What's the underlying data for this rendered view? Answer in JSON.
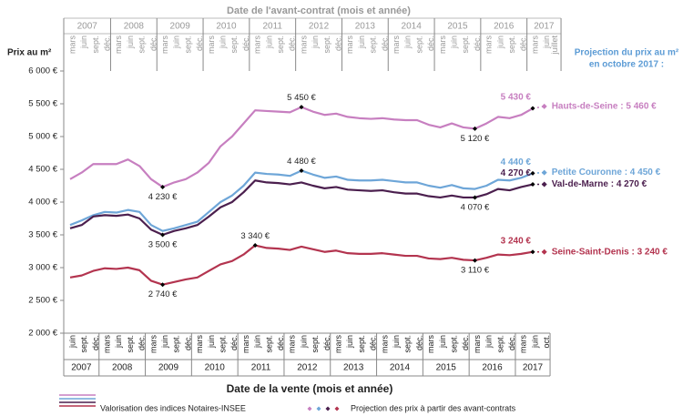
{
  "chart_data": {
    "type": "line",
    "top_axis_title": "Date de l'avant-contrat (mois et année)",
    "x_axis_title": "Date de la vente (mois et année)",
    "y_axis_label": "Prix au m²",
    "right_title": [
      "Projection du prix au m²",
      "en octobre 2017 :"
    ],
    "legend": [
      "Valorisation des indices Notaires-INSEE",
      "Projection des prix à partir des avant-contrats"
    ],
    "years": [
      "2007",
      "2008",
      "2009",
      "2010",
      "2011",
      "2012",
      "2013",
      "2014",
      "2015",
      "2016",
      "2017"
    ],
    "top_months": [
      "mars",
      "juin",
      "sept.",
      "déc.",
      "mars",
      "juin",
      "sept.",
      "déc.",
      "mars",
      "juin",
      "sept.",
      "déc.",
      "mars",
      "juin",
      "sept.",
      "déc.",
      "mars",
      "juin",
      "sept.",
      "déc.",
      "mars",
      "juin",
      "sept.",
      "déc.",
      "mars",
      "juin",
      "sept.",
      "déc.",
      "mars",
      "juin",
      "sept.",
      "déc.",
      "mars",
      "juin",
      "sept.",
      "déc.",
      "mars",
      "juin",
      "sept.",
      "déc.",
      "mars",
      "juin",
      "juillet"
    ],
    "categories": [
      "juin",
      "sept.",
      "déc.",
      "mars",
      "juin",
      "sept.",
      "déc.",
      "mars",
      "juin",
      "sept.",
      "déc.",
      "mars",
      "juin",
      "sept.",
      "déc.",
      "mars",
      "juin",
      "sept.",
      "déc.",
      "mars",
      "juin",
      "sept.",
      "déc.",
      "mars",
      "juin",
      "sept.",
      "déc.",
      "mars",
      "juin",
      "sept.",
      "déc.",
      "mars",
      "juin",
      "sept.",
      "déc.",
      "mars",
      "juin",
      "sept.",
      "déc.",
      "mars",
      "juin"
    ],
    "projection_category": "oct.",
    "ylim": [
      2000,
      6000
    ],
    "yticks": [
      {
        "value": 2000,
        "label": "2 000 €"
      },
      {
        "value": 2500,
        "label": "2 500 €"
      },
      {
        "value": 3000,
        "label": "3 000 €"
      },
      {
        "value": 3500,
        "label": "3 500 €"
      },
      {
        "value": 4000,
        "label": "4 000 €"
      },
      {
        "value": 4500,
        "label": "4 500 €"
      },
      {
        "value": 5000,
        "label": "5 000 €"
      },
      {
        "value": 5500,
        "label": "5 500 €"
      },
      {
        "value": 6000,
        "label": "6 000 €"
      }
    ],
    "series": [
      {
        "name": "Hauts-de-Seine",
        "color": "#c77fc0",
        "values": [
          4350,
          4450,
          4580,
          4580,
          4580,
          4650,
          4550,
          4350,
          4230,
          4300,
          4350,
          4450,
          4600,
          4850,
          5000,
          5200,
          5400,
          5390,
          5380,
          5370,
          5450,
          5380,
          5330,
          5350,
          5300,
          5280,
          5270,
          5280,
          5260,
          5250,
          5250,
          5180,
          5140,
          5200,
          5140,
          5120,
          5200,
          5300,
          5280,
          5330,
          5430
        ],
        "value_labels": [
          null,
          null,
          null,
          null,
          null,
          null,
          null,
          null,
          "4 230 €",
          null,
          null,
          null,
          null,
          null,
          null,
          null,
          null,
          null,
          null,
          null,
          "5 450 €",
          null,
          null,
          null,
          null,
          null,
          null,
          null,
          null,
          null,
          null,
          null,
          null,
          null,
          null,
          "5 120 €",
          null,
          null,
          null,
          null,
          "5 430 €"
        ],
        "projection": 5460,
        "end_label": "Hauts-de-Seine : 5 460 €"
      },
      {
        "name": "Petite Couronne",
        "color": "#6ea6d8",
        "values": [
          3650,
          3720,
          3800,
          3850,
          3840,
          3880,
          3850,
          3650,
          3560,
          3600,
          3650,
          3700,
          3850,
          4000,
          4100,
          4250,
          4450,
          4430,
          4420,
          4400,
          4480,
          4420,
          4370,
          4390,
          4340,
          4330,
          4330,
          4340,
          4320,
          4300,
          4300,
          4250,
          4220,
          4260,
          4210,
          4200,
          4250,
          4340,
          4330,
          4370,
          4440
        ],
        "value_labels": [
          null,
          null,
          null,
          null,
          null,
          null,
          null,
          null,
          null,
          null,
          null,
          null,
          null,
          null,
          null,
          null,
          null,
          null,
          null,
          null,
          "4 480 €",
          null,
          null,
          null,
          null,
          null,
          null,
          null,
          null,
          null,
          null,
          null,
          null,
          null,
          null,
          null,
          null,
          null,
          null,
          null,
          "4 440 €"
        ],
        "projection": 4450,
        "end_label": "Petite Couronne : 4 450 €"
      },
      {
        "name": "Val-de-Marne",
        "color": "#4b1f4e",
        "values": [
          3600,
          3650,
          3780,
          3800,
          3790,
          3810,
          3750,
          3580,
          3500,
          3560,
          3600,
          3650,
          3780,
          3920,
          4000,
          4150,
          4330,
          4300,
          4290,
          4270,
          4300,
          4250,
          4210,
          4230,
          4190,
          4180,
          4170,
          4180,
          4150,
          4130,
          4130,
          4090,
          4070,
          4100,
          4070,
          4070,
          4120,
          4200,
          4180,
          4230,
          4270
        ],
        "value_labels": [
          null,
          null,
          null,
          null,
          null,
          null,
          null,
          null,
          "3 500 €",
          null,
          null,
          null,
          null,
          null,
          null,
          null,
          null,
          null,
          null,
          null,
          null,
          null,
          null,
          null,
          null,
          null,
          null,
          null,
          null,
          null,
          null,
          null,
          null,
          null,
          null,
          "4 070 €",
          null,
          null,
          null,
          null,
          "4 270 €"
        ],
        "projection": 4270,
        "end_label": "Val-de-Marne : 4 270 €"
      },
      {
        "name": "Seine-Saint-Denis",
        "color": "#b3344f",
        "values": [
          2850,
          2880,
          2950,
          2990,
          2980,
          3000,
          2960,
          2800,
          2740,
          2780,
          2820,
          2850,
          2950,
          3050,
          3100,
          3200,
          3340,
          3300,
          3290,
          3270,
          3320,
          3280,
          3240,
          3260,
          3220,
          3210,
          3210,
          3220,
          3200,
          3180,
          3180,
          3140,
          3130,
          3150,
          3120,
          3110,
          3150,
          3200,
          3190,
          3210,
          3240
        ],
        "value_labels": [
          null,
          null,
          null,
          null,
          null,
          null,
          null,
          null,
          "2 740 €",
          null,
          null,
          null,
          null,
          null,
          null,
          null,
          "3 340 €",
          null,
          null,
          null,
          null,
          null,
          null,
          null,
          null,
          null,
          null,
          null,
          null,
          null,
          null,
          null,
          null,
          null,
          null,
          "3 110 €",
          null,
          null,
          null,
          null,
          "3 240 €"
        ],
        "projection": 3240,
        "end_label": "Seine-Saint-Denis : 3 240 €"
      }
    ]
  }
}
